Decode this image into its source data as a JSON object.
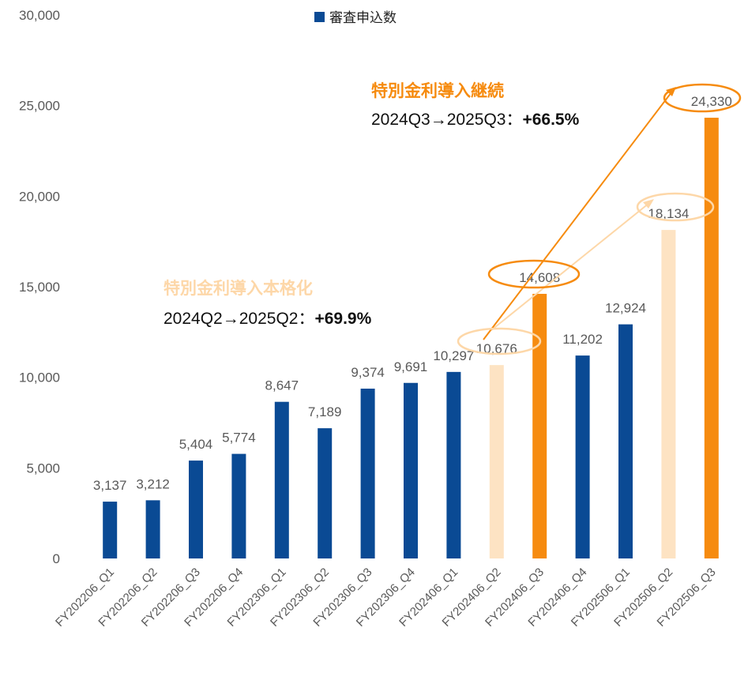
{
  "chart_data": {
    "type": "bar",
    "categories": [
      "FY202206_Q1",
      "FY202206_Q2",
      "FY202206_Q3",
      "FY202206_Q4",
      "FY202306_Q1",
      "FY202306_Q2",
      "FY202306_Q3",
      "FY202306_Q4",
      "FY202406_Q1",
      "FY202406_Q2",
      "FY202406_Q3",
      "FY202406_Q4",
      "FY202506_Q1",
      "FY202506_Q2",
      "FY202506_Q3"
    ],
    "series": [
      {
        "name": "審査申込数",
        "color": "#0a4a94",
        "values": [
          3137,
          3212,
          5404,
          5774,
          8647,
          7189,
          9374,
          9691,
          10297,
          10676,
          14608,
          11202,
          12924,
          18134,
          24330
        ],
        "value_labels": [
          "3,137",
          "3,212",
          "5,404",
          "5,774",
          "8,647",
          "7,189",
          "9,374",
          "9,691",
          "10,297",
          "10,676",
          "14,608",
          "11,202",
          "12,924",
          "18,134",
          "24,330"
        ],
        "colors": [
          "#0a4a94",
          "#0a4a94",
          "#0a4a94",
          "#0a4a94",
          "#0a4a94",
          "#0a4a94",
          "#0a4a94",
          "#0a4a94",
          "#0a4a94",
          "#fde3c3",
          "#f68b0f",
          "#0a4a94",
          "#0a4a94",
          "#fde3c3",
          "#f68b0f"
        ]
      }
    ],
    "ylim": [
      0,
      30000
    ],
    "yticks": [
      0,
      {
        "value": 5000,
        "label": "5,000"
      },
      {
        "value": 10000,
        "label": "10,000"
      },
      {
        "value": 15000,
        "label": "15,000"
      },
      {
        "value": 20000,
        "label": "20,000"
      },
      {
        "value": 25000,
        "label": "25,000"
      },
      {
        "value": 30000,
        "label": "30,000"
      }
    ],
    "legend": "top",
    "annotations": [
      {
        "title": "特別金利導入継続",
        "text": "2024Q3→2025Q3：",
        "change": "+66.5%",
        "color": "#f68b0f"
      },
      {
        "title": "特別金利導入本格化",
        "text": "2024Q2→2025Q2：",
        "change": "+69.9%",
        "color": "#fdd7a8"
      }
    ]
  }
}
